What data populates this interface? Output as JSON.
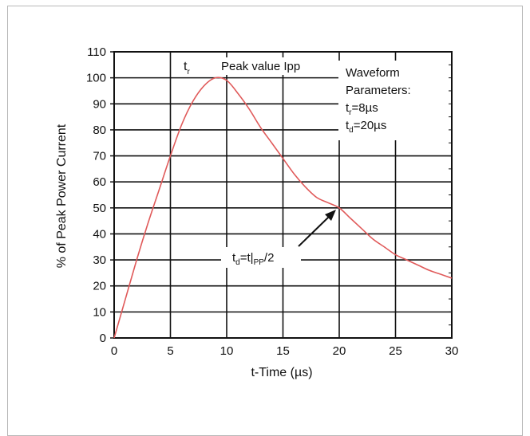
{
  "chart_data": {
    "type": "line",
    "xlabel": "t-Time (µs)",
    "ylabel": "% of Peak Power Current",
    "xlim": [
      0,
      30
    ],
    "ylim": [
      0,
      110
    ],
    "x_ticks": [
      0,
      5,
      10,
      15,
      20,
      25,
      30
    ],
    "y_ticks": [
      0,
      10,
      20,
      30,
      40,
      50,
      60,
      70,
      80,
      90,
      100,
      110
    ],
    "grid": true,
    "series": [
      {
        "color": "#e05a5a",
        "x": [
          0,
          1,
          2,
          3,
          4,
          5,
          6,
          7,
          8,
          9,
          10,
          11,
          12,
          13,
          14,
          15,
          16,
          17,
          18,
          19,
          20,
          21,
          22,
          23,
          24,
          25,
          26,
          27,
          28,
          29,
          30
        ],
        "values": [
          0,
          15,
          30,
          44,
          57,
          70,
          82,
          91,
          97,
          100,
          99,
          94,
          88,
          81,
          75,
          69,
          63,
          58,
          54,
          52,
          50,
          46,
          42,
          38,
          35,
          32,
          30,
          28,
          26,
          24.5,
          23
        ]
      }
    ],
    "annotations": {
      "tr_label": "t",
      "tr_sub": "r",
      "peak_label": "Peak value Ipp",
      "params_title_1": "Waveform",
      "params_title_2": "Parameters:",
      "param_tr_prefix": "t",
      "param_tr_sub": "r",
      "param_tr_value": "=8µs",
      "param_td_prefix": "t",
      "param_td_sub": "d",
      "param_td_value": "=20µs",
      "td_prefix": "t",
      "td_sub": "d",
      "td_mid": "=t|",
      "td_sub2": "PP",
      "td_suffix": "/2",
      "td_point": [
        20,
        50
      ]
    }
  }
}
